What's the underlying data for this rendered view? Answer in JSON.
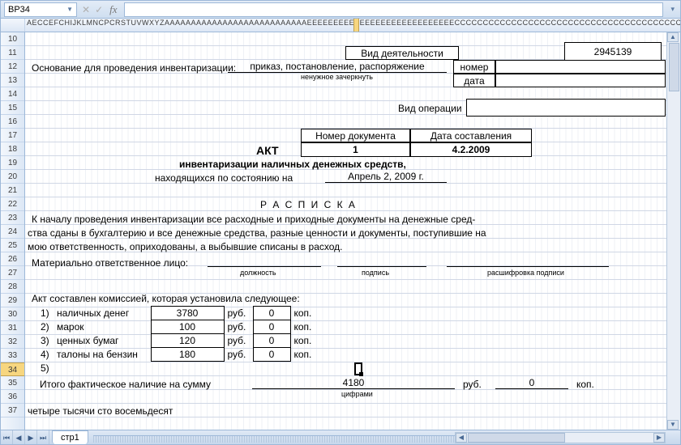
{
  "cellRef": "BP34",
  "colLetters": "AECCEFCHIJKLMNCPCRSTUVWXYZAAAAAAAAAAAAAAAAAAAAAAAAAAAEEEEEEEEEEEEEEEEEEEEEEEEEEEECCCCCCCCCCCCCCCCCCCCCCCCCCCCCCCCCCCCCCCCCCCC",
  "rows": [
    10,
    11,
    12,
    13,
    14,
    15,
    16,
    17,
    18,
    19,
    20,
    21,
    22,
    23,
    24,
    25,
    26,
    27,
    28,
    29,
    30,
    31,
    32,
    33,
    34,
    35,
    36,
    37
  ],
  "selRow": 34,
  "labels": {
    "activityKind": "Вид деятельности",
    "activityCode": "2945139",
    "basis": "Основание для проведения инвентаризации:",
    "basisVal": "приказ,  постановление,  распоряжение",
    "basisNote": "ненужное зачеркнуть",
    "number": "номер",
    "date": "дата",
    "opType": "Вид операции",
    "docNum": "Номер документа",
    "docDate": "Дата составления",
    "akt": "АКТ",
    "docNumVal": "1",
    "docDateVal": "4.2.2009",
    "aktTitle": "инвентаризации наличных денежных средств,",
    "asOf": "находящихся по состоянию на",
    "asOfDate": "Апрель 2, 2009 г.",
    "raspiska": "Р А С П И С К А",
    "p1": "К началу проведения инвентаризации все расходные и приходные документы на денежные сред-",
    "p2": "ства сданы  в бухгалтерию и все денежные средства, разные ценности и документы, поступившие на",
    "p3": "мою ответственность, оприходованы, а выбывшие списаны в расход.",
    "mol": "Материально ответственное лицо:",
    "molPos": "должность",
    "molSign": "подпись",
    "molName": "расшифровка подписи",
    "commission": "Акт составлен комиссией, которая установила следующее:",
    "items": [
      {
        "n": "1)",
        "label": "наличных денег",
        "rub": "3780",
        "kop": "0"
      },
      {
        "n": "2)",
        "label": "марок",
        "rub": "100",
        "kop": "0"
      },
      {
        "n": "3)",
        "label": "ценных бумаг",
        "rub": "120",
        "kop": "0"
      },
      {
        "n": "4)",
        "label": "талоны на бензин",
        "rub": "180",
        "kop": "0"
      },
      {
        "n": "5)",
        "label": "",
        "rub": "",
        "kop": ""
      }
    ],
    "rub": "руб.",
    "kop": "коп.",
    "total": "Итого фактическое наличие на сумму",
    "totalRub": "4180",
    "totalKop": "0",
    "totalNote": "цифрами",
    "totalWords": "четыре тысячи сто восемьдесят"
  },
  "tab": "стр1"
}
